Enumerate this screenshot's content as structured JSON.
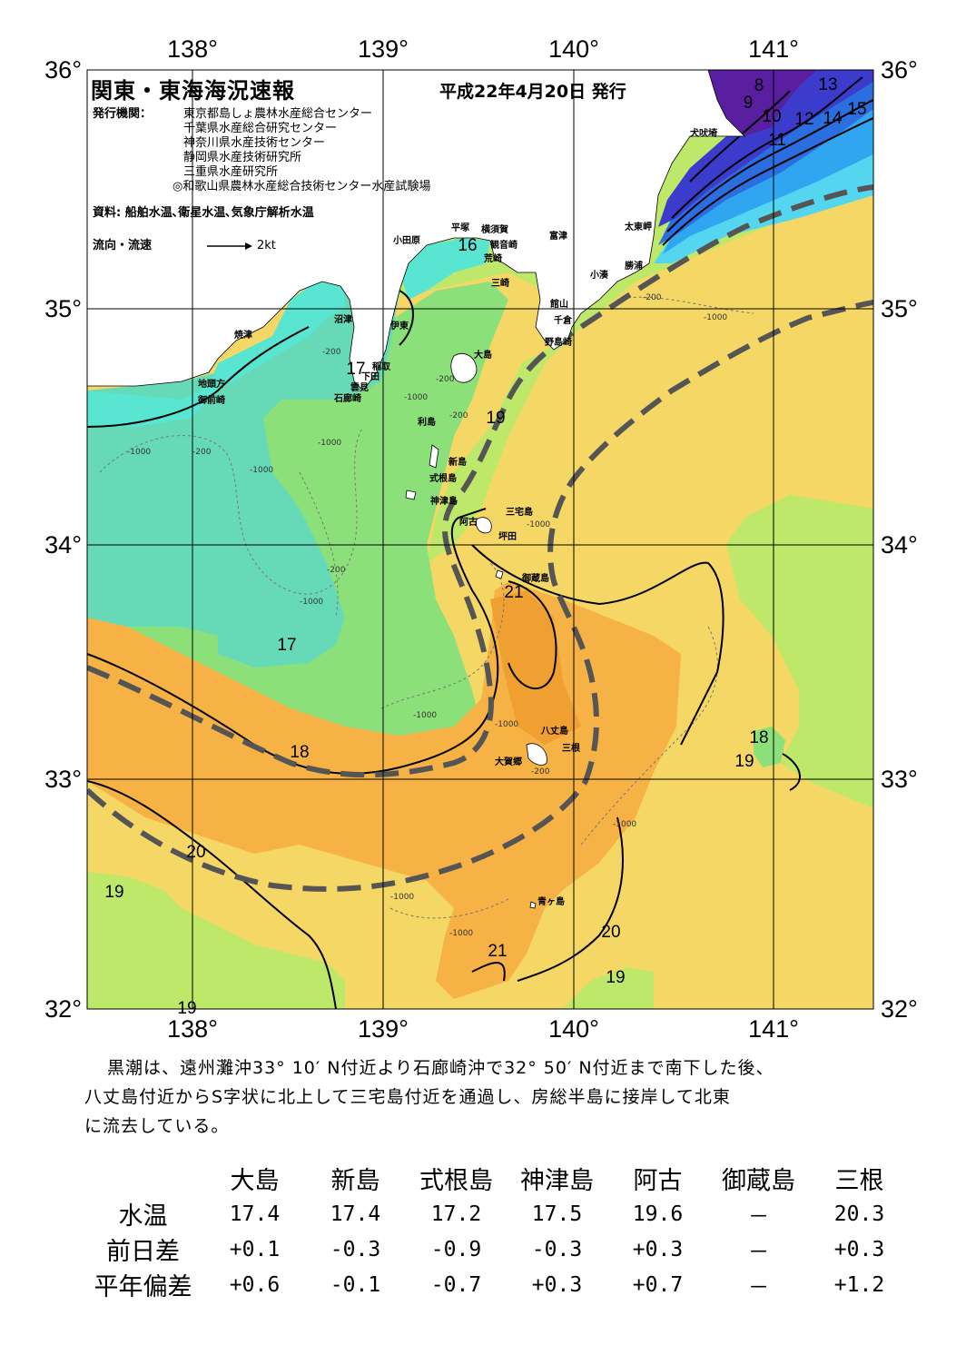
{
  "header": {
    "title": "関東・東海海況速報",
    "issue_date": "平成22年4月20日 発行",
    "issuer_label": "発行機関：",
    "issuers": [
      "東京都島しょ農林水産総合センター",
      "千葉県水産総合研究センター",
      "神奈川県水産技術センター",
      "静岡県水産技術研究所",
      "三重県水産研究所",
      "◎和歌山県農林水産総合技術センター水産試験場"
    ],
    "sources": "資料: 船舶水温､衛星水温､気象庁解析水温",
    "flow_label": "流向・流速",
    "flow_scale": "2kt"
  },
  "axes": {
    "top_lon": [
      "138°",
      "139°",
      "140°",
      "141°"
    ],
    "bottom_lon": [
      "138°",
      "139°",
      "140°",
      "141°"
    ],
    "lat": [
      "36°",
      "35°",
      "34°",
      "33°",
      "32°"
    ]
  },
  "place_labels": [
    "犬吠埼",
    "太東岬",
    "勝浦",
    "小湊",
    "館山",
    "千倉",
    "野島崎",
    "富津",
    "横須賀",
    "観音崎",
    "荒崎",
    "三崎",
    "平塚",
    "小田原",
    "沼津",
    "伊東",
    "焼津",
    "地頭方",
    "御前崎",
    "稲取",
    "下田",
    "雲見",
    "石廊崎",
    "大島",
    "利島",
    "新島",
    "式根島",
    "神津島",
    "三宅島",
    "阿古",
    "坪田",
    "御蔵島",
    "八丈島",
    "三根",
    "大賀郷",
    "青ヶ島"
  ],
  "isotherm_labels": [
    "8",
    "9",
    "10",
    "11",
    "12",
    "13",
    "14",
    "15",
    "16",
    "17",
    "17",
    "18",
    "18",
    "19",
    "19",
    "19",
    "19",
    "19",
    "20",
    "20",
    "21",
    "21"
  ],
  "depth_labels": [
    "-200",
    "-1000"
  ],
  "colors": {
    "t8": "#5a1ea0",
    "t10": "#3c3ccc",
    "t12": "#2a6ee0",
    "t14": "#30a6f0",
    "t15": "#55d6f0",
    "t16": "#58e6d2",
    "t17": "#66dab6",
    "t18": "#8ce07a",
    "t19": "#bde86a",
    "t20": "#f5d765",
    "t21": "#f6b245",
    "t21b": "#f0a030",
    "kuroshio_axis": "#555555",
    "land": "#ffffff"
  },
  "description": [
    "黒潮は、遠州灘沖33° 10′ N付近より石廊崎沖で32° 50′ N付近まで南下した後、",
    "八丈島付近からS字状に北上して三宅島付近を通過し、房総半島に接岸して北東",
    "に流去している。"
  ],
  "table": {
    "columns": [
      "大島",
      "新島",
      "式根島",
      "神津島",
      "阿古",
      "御蔵島",
      "三根"
    ],
    "rows": [
      {
        "label": "水温",
        "values": [
          "17.4",
          "17.4",
          "17.2",
          "17.5",
          "19.6",
          "－",
          "20.3"
        ]
      },
      {
        "label": "前日差",
        "values": [
          "+0.1",
          "-0.3",
          "-0.9",
          "-0.3",
          "+0.3",
          "－",
          "+0.3"
        ]
      },
      {
        "label": "平年偏差",
        "values": [
          "+0.6",
          "-0.1",
          "-0.7",
          "+0.3",
          "+0.7",
          "－",
          "+1.2"
        ]
      }
    ]
  }
}
